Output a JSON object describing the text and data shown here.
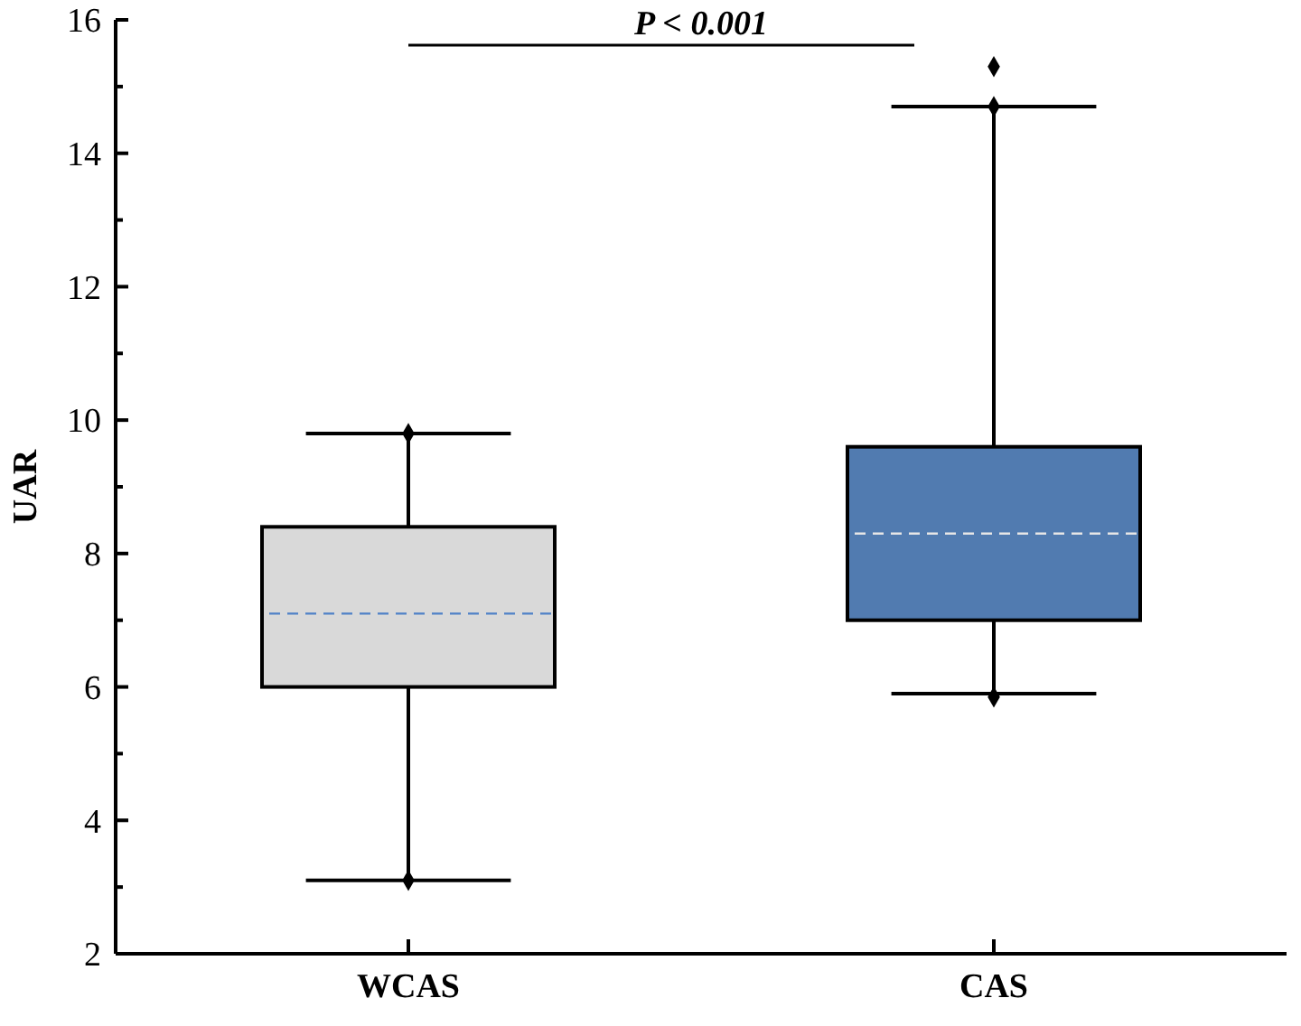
{
  "chart_data": {
    "type": "box",
    "ylabel": "UAR",
    "categories": [
      "WCAS",
      "CAS"
    ],
    "series": [
      {
        "colors": [
          "#d9d9d9",
          "#517bb0"
        ],
        "boxes": [
          {
            "low": 3.1,
            "q1": 6.0,
            "median": 7.1,
            "q3": 8.4,
            "high": 9.8,
            "outliers": [
              9.8,
              3.1
            ]
          },
          {
            "low": 5.9,
            "q1": 7.0,
            "median": 8.3,
            "q3": 9.6,
            "high": 14.7,
            "outliers": [
              15.3,
              14.7,
              5.85
            ]
          }
        ]
      }
    ],
    "ylim": [
      2,
      16
    ],
    "yticks": [
      2,
      {
        "value": 3,
        "label": null
      },
      4,
      {
        "value": 5,
        "label": null
      },
      6,
      {
        "value": 7,
        "label": null
      },
      8,
      {
        "value": 9,
        "label": null
      },
      10,
      {
        "value": 11,
        "label": null
      },
      12,
      {
        "value": 13,
        "label": null
      },
      14,
      {
        "value": 15,
        "label": null
      },
      16
    ],
    "line_style": "dashed",
    "grid": false,
    "annotations": [
      "P < 0.001"
    ]
  }
}
